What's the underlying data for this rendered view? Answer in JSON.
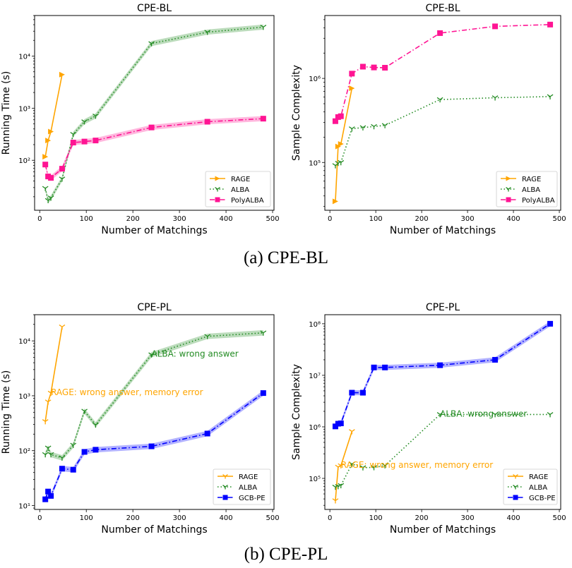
{
  "captions": [
    "(a) CPE-BL",
    "(b) CPE-PL"
  ],
  "colors": {
    "RAGE": "#FFA500",
    "ALBA": "#228B22",
    "PolyALBA": "#FF1493",
    "GCB-PE": "#0000FF"
  },
  "chart_data": [
    {
      "type": "line",
      "title": "CPE-BL",
      "xlabel": "Number of Matchings",
      "ylabel": "Running Time (s)",
      "yscale": "log",
      "xlim": [
        -11,
        503
      ],
      "ylim": [
        11,
        60000
      ],
      "xticks": [
        0,
        100,
        200,
        300,
        400,
        500
      ],
      "yticks": [
        100,
        1000,
        10000
      ],
      "legend": "lower-right",
      "grid": false,
      "series": [
        {
          "name": "RAGE",
          "style": "solid",
          "marker": "triangle-right",
          "x": [
            12,
            18,
            24,
            48
          ],
          "y": [
            117,
            240,
            355,
            4400
          ]
        },
        {
          "name": "ALBA",
          "style": "dotted",
          "marker": "tri-down",
          "band": true,
          "x": [
            12,
            18,
            24,
            48,
            72,
            96,
            120,
            240,
            360,
            480
          ],
          "y": [
            29,
            17,
            19,
            44,
            316,
            550,
            710,
            17400,
            28800,
            36000
          ]
        },
        {
          "name": "PolyALBA",
          "style": "dashdot",
          "marker": "square",
          "band": true,
          "x": [
            12,
            18,
            24,
            48,
            72,
            96,
            120,
            240,
            360,
            480
          ],
          "y": [
            83,
            49,
            46,
            69,
            219,
            229,
            240,
            427,
            550,
            630
          ]
        }
      ],
      "annotations": []
    },
    {
      "type": "line",
      "title": "CPE-BL",
      "xlabel": "Number of Matchings",
      "ylabel": "Sample Complexity",
      "yscale": "log",
      "xlim": [
        -11,
        503
      ],
      "ylim": [
        27000,
        5600000
      ],
      "xticks": [
        0,
        100,
        200,
        300,
        400,
        500
      ],
      "yticks": [
        100000,
        1000000
      ],
      "legend": "lower-right",
      "grid": false,
      "series": [
        {
          "name": "RAGE",
          "style": "solid",
          "marker": "triangle-right",
          "x": [
            12,
            18,
            24,
            48
          ],
          "y": [
            34500,
            155000,
            166000,
            763000
          ]
        },
        {
          "name": "ALBA",
          "style": "dotted",
          "marker": "tri-down",
          "x": [
            12,
            18,
            24,
            48,
            72,
            96,
            120,
            240,
            360,
            480
          ],
          "y": [
            92000,
            98000,
            100000,
            252000,
            260000,
            268000,
            276000,
            560000,
            589000,
            608000
          ]
        },
        {
          "name": "PolyALBA",
          "style": "dashdot",
          "marker": "square",
          "x": [
            12,
            18,
            24,
            48,
            72,
            96,
            120,
            240,
            360,
            480
          ],
          "y": [
            310000,
            347000,
            355000,
            1140000,
            1380000,
            1350000,
            1340000,
            3460000,
            4160000,
            4370000
          ]
        }
      ],
      "annotations": []
    },
    {
      "type": "line",
      "title": "CPE-PL",
      "xlabel": "Number of Matchings",
      "ylabel": "Running Time (s)",
      "yscale": "log",
      "xlim": [
        -11,
        503
      ],
      "ylim": [
        8.5,
        30000
      ],
      "xticks": [
        0,
        100,
        200,
        300,
        400,
        500
      ],
      "yticks": [
        10,
        100,
        1000,
        10000
      ],
      "legend": "lower-right",
      "grid": false,
      "series": [
        {
          "name": "RAGE",
          "style": "solid",
          "marker": "tri-down",
          "x": [
            12,
            18,
            24,
            48
          ],
          "y": [
            340,
            775,
            1120,
            18000
          ]
        },
        {
          "name": "ALBA",
          "style": "dotted",
          "marker": "tri-down",
          "band": true,
          "x": [
            12,
            18,
            24,
            48,
            72,
            96,
            120,
            240,
            360,
            480
          ],
          "y": [
            85,
            112,
            85,
            74,
            126,
            525,
            295,
            5600,
            12100,
            14000
          ]
        },
        {
          "name": "GCB-PE",
          "style": "dashdot",
          "marker": "square",
          "band": true,
          "x": [
            12,
            18,
            24,
            48,
            72,
            96,
            120,
            240,
            360,
            480
          ],
          "y": [
            13,
            18,
            15,
            47,
            45,
            95,
            104,
            120,
            205,
            1120
          ]
        }
      ],
      "annotations": [
        {
          "text": "ALBA: wrong answer",
          "x": 240,
          "y": 5600,
          "series": "ALBA"
        },
        {
          "text": "RAGE: wrong answer, memory error",
          "x": 24,
          "y": 1120,
          "series": "RAGE"
        }
      ]
    },
    {
      "type": "line",
      "title": "CPE-PL",
      "xlabel": "Number of Matchings",
      "ylabel": "Sample Complexity",
      "yscale": "log",
      "xlim": [
        -11,
        503
      ],
      "ylim": [
        25000,
        150000000
      ],
      "xticks": [
        0,
        100,
        200,
        300,
        400,
        500
      ],
      "yticks": [
        100000,
        1000000,
        10000000,
        100000000
      ],
      "legend": "lower-right",
      "grid": false,
      "series": [
        {
          "name": "RAGE",
          "style": "solid",
          "marker": "tri-down",
          "x": [
            12,
            18,
            24,
            48
          ],
          "y": [
            37000,
            166000,
            177000,
            815000
          ]
        },
        {
          "name": "ALBA",
          "style": "dotted",
          "marker": "tri-down",
          "x": [
            12,
            18,
            24,
            48,
            72,
            96,
            120,
            240,
            360,
            480
          ],
          "y": [
            68000,
            70000,
            73000,
            190000,
            162000,
            163000,
            177000,
            1740000,
            1740000,
            1740000
          ]
        },
        {
          "name": "GCB-PE",
          "style": "dashdot",
          "marker": "square",
          "band": true,
          "x": [
            12,
            18,
            24,
            48,
            72,
            96,
            120,
            240,
            360,
            480
          ],
          "y": [
            1020000,
            1150000,
            1170000,
            4600000,
            4600000,
            14200000,
            14200000,
            15700000,
            20000000,
            100000000
          ]
        }
      ],
      "annotations": [
        {
          "text": "ALBA: wrong answer",
          "x": 240,
          "y": 1740000,
          "series": "ALBA"
        },
        {
          "text": "RAGE: wrong answer, memory error",
          "x": 24,
          "y": 177000,
          "series": "RAGE"
        }
      ]
    }
  ]
}
